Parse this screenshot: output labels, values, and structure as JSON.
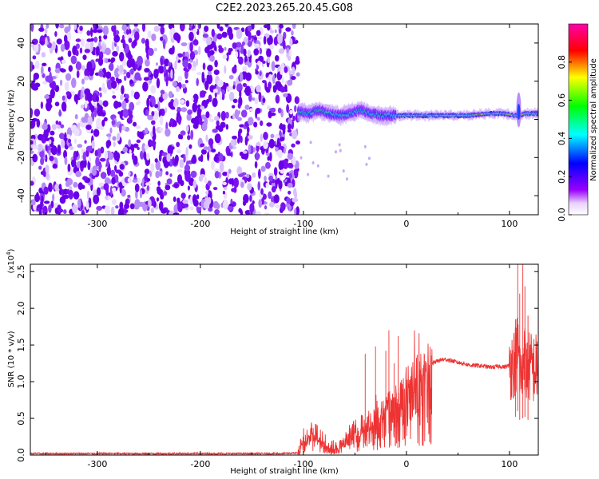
{
  "title": "C2E2.2023.265.20.45.G08",
  "colors": {
    "snr_line": "#ee3333",
    "noise_purple": "#6a00e8",
    "colormap": [
      "#ffffff",
      "#9900ff",
      "#0000ff",
      "#00ffff",
      "#00ff00",
      "#ffff00",
      "#ff0000",
      "#ff00aa"
    ]
  },
  "chart_data": [
    {
      "type": "heatmap",
      "xlabel": "Height of straight line (km)",
      "ylabel": "Frequency (Hz)",
      "xlim": [
        -365,
        128
      ],
      "ylim": [
        -50,
        50
      ],
      "x_ticks": [
        -300,
        -200,
        -100,
        0,
        100
      ],
      "y_ticks": [
        -40,
        -20,
        0,
        20,
        40
      ],
      "colorbar": {
        "label": "Normalized spectral amplitude",
        "range": [
          0,
          1
        ],
        "ticks": [
          "0.0",
          "0.2",
          "0.4",
          "0.6",
          "0.8"
        ]
      },
      "noise_region": [
        -365,
        -105
      ],
      "signal_trace": {
        "x": [
          -105,
          -95,
          -85,
          -75,
          -65,
          -55,
          -45,
          -35,
          -25,
          -15,
          0,
          20,
          40,
          60,
          80,
          95,
          105,
          110,
          115,
          128
        ],
        "freq": [
          4,
          3,
          5,
          3,
          2,
          3,
          5,
          3,
          2,
          2,
          2,
          2,
          2,
          2,
          3,
          3,
          2,
          2,
          3,
          3
        ]
      }
    },
    {
      "type": "line",
      "xlabel": "Height of straight line (km)",
      "ylabel": "SNR (10 * v/v)",
      "y_multiplier": "(x10",
      "y_multiplier_exp": "4",
      "y_multiplier_close": ")",
      "xlim": [
        -365,
        128
      ],
      "ylim": [
        0,
        2.6
      ],
      "x_ticks": [
        -300,
        -200,
        -100,
        0,
        100
      ],
      "y_ticks": [
        "0.0",
        "0.5",
        "1.0",
        "1.5",
        "2.0",
        "2.5"
      ],
      "series": [
        {
          "x": [
            -365,
            -300,
            -200,
            -120,
            -105,
            -100,
            -95,
            -90,
            -85,
            -80,
            -75,
            -70,
            -65,
            -60,
            -55,
            -50,
            -45,
            -40,
            -35,
            -30,
            -25,
            -20,
            -15,
            -10,
            -5,
            0,
            5,
            10,
            15,
            20,
            25,
            30,
            35,
            40,
            45,
            50,
            55,
            60,
            65,
            70,
            75,
            80,
            85,
            90,
            95,
            100,
            103,
            106,
            108,
            110,
            112,
            114,
            116,
            118,
            120,
            124,
            128
          ],
          "y": [
            0.02,
            0.02,
            0.02,
            0.02,
            0.03,
            0.2,
            0.3,
            0.35,
            0.25,
            0.2,
            0.15,
            0.1,
            0.12,
            0.2,
            0.3,
            0.35,
            0.4,
            0.45,
            0.5,
            0.55,
            0.6,
            0.7,
            0.75,
            0.8,
            0.9,
            1.0,
            1.05,
            1.12,
            1.18,
            1.22,
            1.25,
            1.28,
            1.3,
            1.3,
            1.28,
            1.26,
            1.25,
            1.23,
            1.22,
            1.22,
            1.21,
            1.2,
            1.2,
            1.21,
            1.2,
            1.22,
            1.25,
            1.3,
            1.5,
            1.2,
            1.0,
            1.5,
            1.1,
            1.2,
            1.2,
            1.18,
            1.18
          ],
          "peaks": [
            [
              -17,
              1.7
            ],
            [
              -8,
              1.62
            ],
            [
              -30,
              1.48
            ],
            [
              -20,
              1.42
            ],
            [
              -40,
              1.38
            ],
            [
              -12,
              1.25
            ],
            [
              108,
              2.6
            ],
            [
              110,
              2.2
            ],
            [
              113,
              2.6
            ],
            [
              115,
              2.3
            ],
            [
              118,
              1.9
            ],
            [
              106,
              1.85
            ]
          ]
        }
      ]
    }
  ]
}
